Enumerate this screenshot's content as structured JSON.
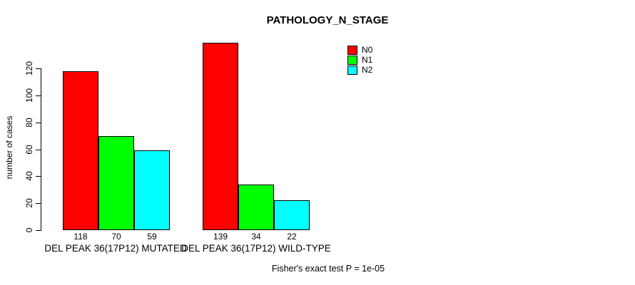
{
  "chart_data": {
    "type": "bar",
    "title": "PATHOLOGY_N_STAGE",
    "xlabel": "",
    "ylabel": "number of cases",
    "categories": [
      "DEL PEAK 36(17P12) MUTATED",
      "DEL PEAK 36(17P12) WILD-TYPE"
    ],
    "series": [
      {
        "name": "N0",
        "color": "#ff0000",
        "values": [
          118,
          139
        ]
      },
      {
        "name": "N1",
        "color": "#00ff00",
        "values": [
          70,
          34
        ]
      },
      {
        "name": "N2",
        "color": "#00ffff",
        "values": [
          59,
          22
        ]
      }
    ],
    "yticks": [
      0,
      20,
      40,
      60,
      80,
      100,
      120
    ],
    "ylim": [
      0,
      140
    ],
    "grid": false,
    "legend_position": "top-right",
    "show_bar_values": true,
    "bar_border_color": "#000000",
    "background_color": "#ffffff",
    "annotation": "Fisher's exact test P = 1e-05"
  }
}
